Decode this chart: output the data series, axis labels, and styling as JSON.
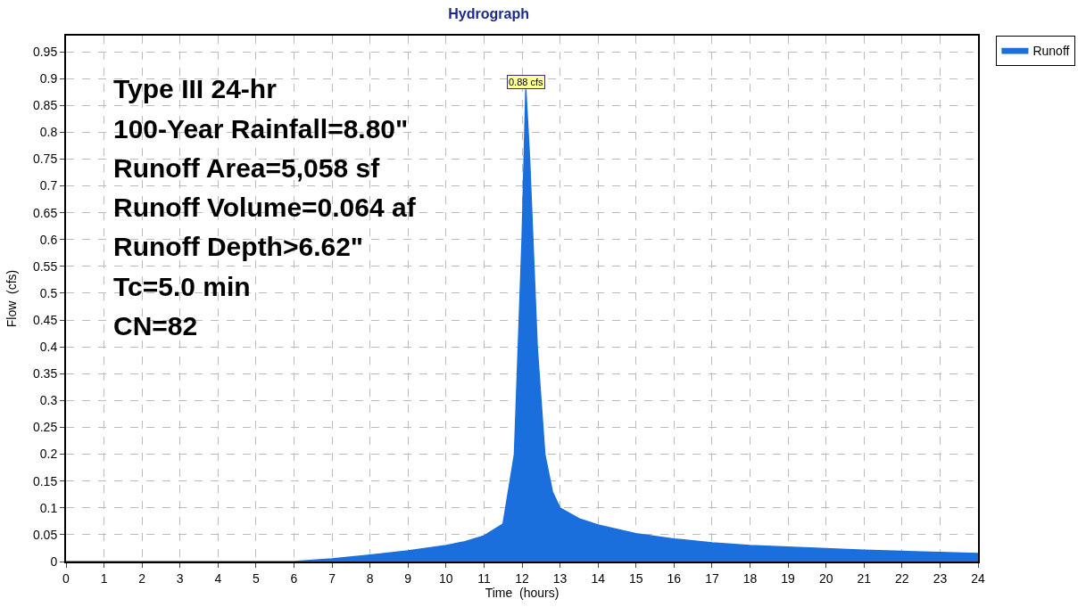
{
  "chart_data": {
    "type": "area",
    "title": "Hydrograph",
    "xlabel": "Time  (hours)",
    "ylabel": "Flow  (cfs)",
    "x": [
      0,
      1,
      2,
      3,
      4,
      5,
      6,
      7,
      8,
      9,
      10,
      10.5,
      11,
      11.5,
      11.8,
      12,
      12.1,
      12.2,
      12.4,
      12.6,
      12.8,
      13,
      13.5,
      14,
      15,
      16,
      17,
      18,
      19,
      20,
      21,
      22,
      23,
      24
    ],
    "series": [
      {
        "name": "Runoff",
        "color": "#1a6fdc",
        "values": [
          0,
          0,
          0,
          0,
          0,
          0,
          0,
          0.005,
          0.012,
          0.02,
          0.03,
          0.037,
          0.048,
          0.07,
          0.2,
          0.6,
          0.88,
          0.75,
          0.4,
          0.2,
          0.13,
          0.1,
          0.08,
          0.068,
          0.052,
          0.042,
          0.035,
          0.03,
          0.027,
          0.024,
          0.021,
          0.019,
          0.017,
          0.015
        ]
      }
    ],
    "xlim": [
      0,
      24
    ],
    "xticks": [
      0,
      1,
      2,
      3,
      4,
      5,
      6,
      7,
      8,
      9,
      10,
      11,
      12,
      13,
      14,
      15,
      16,
      17,
      18,
      19,
      20,
      21,
      22,
      23,
      24
    ],
    "ylim": [
      0,
      0.98
    ],
    "yticks": [
      0,
      0.05,
      0.1,
      0.15,
      0.2,
      0.25,
      0.3,
      0.35,
      0.4,
      0.45,
      0.5,
      0.55,
      0.6,
      0.65,
      0.7,
      0.75,
      0.8,
      0.85,
      0.9,
      0.95
    ],
    "grid": true,
    "legend": "top right",
    "annotations": [
      "Type III 24-hr",
      "100-Year Rainfall=8.80\"",
      "Runoff Area=5,058 sf",
      "Runoff Volume=0.064 af",
      "Runoff Depth>6.62\"",
      "Tc=5.0 min",
      "CN=82",
      {
        "text": "0.88 cfs",
        "x": 12.1,
        "y": 0.88
      }
    ]
  }
}
